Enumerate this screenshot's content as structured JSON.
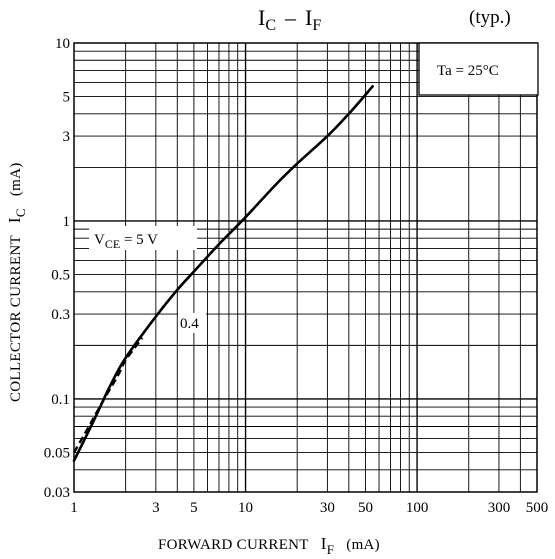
{
  "chart_data": {
    "type": "line",
    "title_main": "I",
    "title_main_sub1": "C",
    "title_main_dash": "–",
    "title_main_sub2_base": "I",
    "title_main_sub2": "F",
    "title_note": "(typ.)",
    "xlabel": "FORWARD CURRENT",
    "xlabel_symbol": "I",
    "xlabel_symbol_sub": "F",
    "xlabel_unit": "(mA)",
    "ylabel": "COLLECTOR CURRENT",
    "ylabel_symbol": "I",
    "ylabel_symbol_sub": "C",
    "ylabel_unit": "(mA)",
    "xscale": "log",
    "yscale": "log",
    "xlim": [
      1,
      500
    ],
    "ylim": [
      0.03,
      10
    ],
    "grid": true,
    "x_ticks": [
      1,
      3,
      5,
      10,
      30,
      50,
      100,
      300,
      500
    ],
    "x_tick_labels": [
      "1",
      "3",
      "5",
      "10",
      "30",
      "50",
      "100",
      "300",
      "500"
    ],
    "y_ticks": [
      0.03,
      0.05,
      0.1,
      0.3,
      0.5,
      1,
      3,
      5,
      10
    ],
    "y_tick_labels": [
      "0.03",
      "0.05",
      "0.1",
      "0.3",
      "0.5",
      "1",
      "3",
      "5",
      "10"
    ],
    "conditions_box": "Ta = 25°C",
    "series": [
      {
        "style": "solid",
        "x": [
          1,
          1.3,
          1.6,
          2,
          3,
          4,
          5,
          7,
          10,
          15,
          20,
          30,
          40,
          55
        ],
        "y": [
          0.045,
          0.075,
          0.115,
          0.17,
          0.29,
          0.41,
          0.52,
          0.74,
          1.05,
          1.6,
          2.1,
          3.0,
          4.0,
          5.7
        ]
      },
      {
        "style": "dashed",
        "x": [
          1,
          1.2,
          1.5,
          1.8,
          2,
          2.5
        ],
        "y": [
          0.05,
          0.068,
          0.1,
          0.135,
          0.165,
          0.22
        ]
      }
    ],
    "annotations": [
      {
        "label_base": "V",
        "label_sub": "CE",
        "label_rest": " = 5 V"
      },
      {
        "label": "0.4"
      }
    ]
  }
}
